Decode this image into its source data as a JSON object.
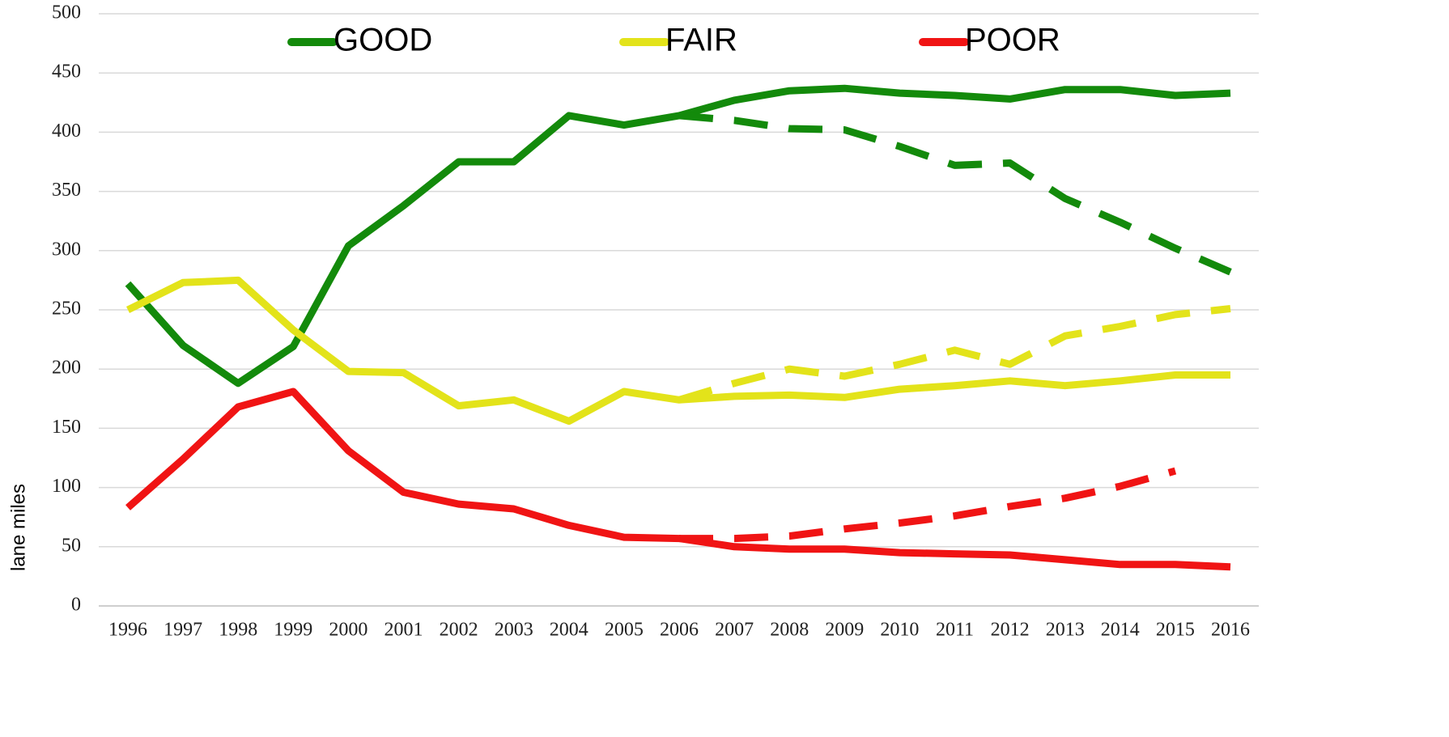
{
  "chart_data": {
    "type": "line",
    "y_label": "lane miles",
    "categories": [
      "1996",
      "1997",
      "1998",
      "1999",
      "2000",
      "2001",
      "2002",
      "2003",
      "2004",
      "2005",
      "2006",
      "2007",
      "2008",
      "2009",
      "2010",
      "2011",
      "2012",
      "2013",
      "2014",
      "2015",
      "2016"
    ],
    "series": [
      {
        "name": "GOOD",
        "color": "#138a0b",
        "values": [
          272,
          220,
          188,
          219,
          304,
          338,
          375,
          375,
          414,
          406,
          414,
          427,
          435,
          437,
          433,
          431,
          428,
          436,
          436,
          431,
          433
        ]
      },
      {
        "name": "FAIR",
        "color": "#e3e31a",
        "values": [
          250,
          273,
          275,
          233,
          198,
          197,
          169,
          174,
          156,
          181,
          174,
          177,
          178,
          176,
          183,
          186,
          190,
          186,
          190,
          195,
          195
        ]
      },
      {
        "name": "POOR",
        "color": "#f01414",
        "values": [
          83,
          124,
          168,
          181,
          131,
          96,
          86,
          82,
          68,
          58,
          57,
          50,
          48,
          48,
          45,
          44,
          43,
          39,
          35,
          35,
          33
        ]
      },
      {
        "color": "#138a0b",
        "dashed": true,
        "values": [
          null,
          null,
          null,
          null,
          null,
          null,
          null,
          null,
          null,
          null,
          414,
          410,
          403,
          402,
          388,
          372,
          374,
          344,
          324,
          302,
          282
        ]
      },
      {
        "color": "#e3e31a",
        "dashed": true,
        "values": [
          null,
          null,
          null,
          null,
          null,
          null,
          null,
          null,
          null,
          null,
          174,
          188,
          200,
          194,
          204,
          216,
          204,
          228,
          236,
          246,
          251
        ]
      },
      {
        "color": "#f01414",
        "dashed": true,
        "values": [
          null,
          null,
          null,
          null,
          null,
          null,
          null,
          null,
          null,
          null,
          57,
          57,
          59,
          65,
          70,
          76,
          84,
          91,
          101,
          114,
          null
        ]
      }
    ],
    "ylim": [
      0,
      500
    ],
    "yticks": [
      0,
      50,
      100,
      150,
      200,
      250,
      300,
      350,
      400,
      450,
      500
    ],
    "grid": true,
    "legend": "top"
  }
}
